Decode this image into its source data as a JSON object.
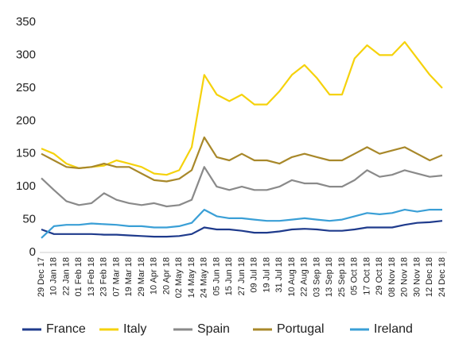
{
  "chart_data": {
    "type": "line",
    "categories": [
      "29 Dec 17",
      "10 Jan 18",
      "22 Jan 18",
      "01 Feb 18",
      "13 Feb 18",
      "23 Feb 18",
      "07 Mar 18",
      "19 Mar 18",
      "29 Mar 18",
      "10 Apr 18",
      "20 Apr 18",
      "02 May 18",
      "14 May 18",
      "24 May 18",
      "05 Jun 18",
      "15 Jun 18",
      "27 Jun 18",
      "09 Jul 18",
      "19 Jul 18",
      "31 Jul 18",
      "10 Aug 18",
      "22 Aug 18",
      "03 Sep 18",
      "13 Sep 18",
      "25 Sep 18",
      "05 Oct 18",
      "17 Oct 18",
      "29 Oct 18",
      "08 Nov 18",
      "20 Nov 18",
      "30 Nov 18",
      "12 Dec 18",
      "24 Dec 18"
    ],
    "series": [
      {
        "name": "France",
        "color": "#1f3b8c",
        "values": [
          35,
          28,
          28,
          28,
          28,
          27,
          27,
          26,
          25,
          24,
          24,
          25,
          28,
          38,
          35,
          35,
          33,
          30,
          30,
          32,
          35,
          36,
          35,
          33,
          33,
          35,
          38,
          38,
          38,
          42,
          45,
          46,
          48
        ]
      },
      {
        "name": "Italy",
        "color": "#f5d20c",
        "values": [
          158,
          150,
          135,
          128,
          130,
          132,
          140,
          135,
          130,
          120,
          118,
          125,
          160,
          270,
          240,
          230,
          240,
          225,
          225,
          245,
          270,
          285,
          265,
          240,
          240,
          295,
          315,
          300,
          300,
          320,
          295,
          270,
          250
        ]
      },
      {
        "name": "Spain",
        "color": "#8a8a8a",
        "values": [
          113,
          95,
          78,
          72,
          75,
          90,
          80,
          75,
          72,
          75,
          70,
          72,
          80,
          130,
          100,
          95,
          100,
          95,
          95,
          100,
          110,
          105,
          105,
          100,
          100,
          110,
          125,
          115,
          118,
          125,
          120,
          115,
          117
        ]
      },
      {
        "name": "Portugal",
        "color": "#a8882a",
        "values": [
          150,
          140,
          130,
          128,
          130,
          135,
          130,
          130,
          120,
          110,
          108,
          112,
          125,
          175,
          145,
          140,
          150,
          140,
          140,
          135,
          145,
          150,
          145,
          140,
          140,
          150,
          160,
          150,
          155,
          160,
          150,
          140,
          148
        ]
      },
      {
        "name": "Ireland",
        "color": "#3a9fd6",
        "values": [
          22,
          40,
          42,
          42,
          44,
          43,
          42,
          40,
          40,
          38,
          38,
          40,
          45,
          65,
          55,
          52,
          52,
          50,
          48,
          48,
          50,
          52,
          50,
          48,
          50,
          55,
          60,
          58,
          60,
          65,
          62,
          65,
          65
        ]
      }
    ],
    "ylim": [
      0,
      350
    ],
    "yticks": [
      0,
      50,
      100,
      150,
      200,
      250,
      300,
      350
    ],
    "grid": false,
    "legend": "bottom"
  }
}
